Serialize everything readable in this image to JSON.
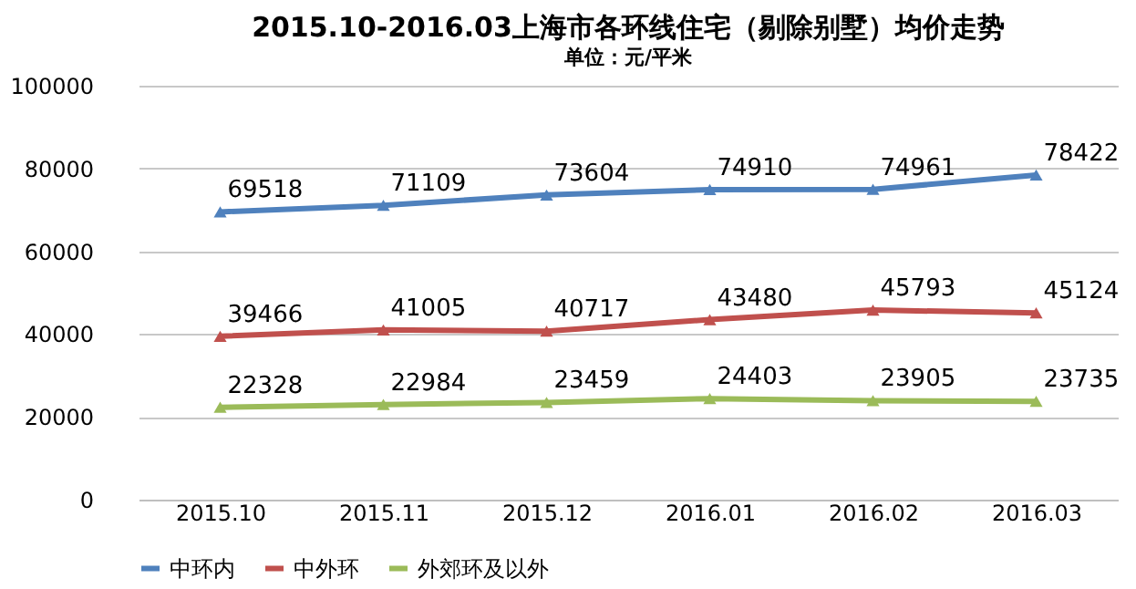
{
  "chart_data": {
    "type": "line",
    "title": "2015.10-2016.03上海市各环线住宅（剔除别墅）均价走势",
    "ylabel": "单位：元/平米",
    "categories": [
      "2015.10",
      "2015.11",
      "2015.12",
      "2016.01",
      "2016.02",
      "2016.03"
    ],
    "series": [
      {
        "name": "中环内",
        "color": "#4f81bd",
        "values": [
          69518,
          71109,
          73604,
          74910,
          74961,
          78422
        ]
      },
      {
        "name": "中外环",
        "color": "#c0504d",
        "values": [
          39466,
          41005,
          40717,
          43480,
          45793,
          45124
        ]
      },
      {
        "name": "外郊环及以外",
        "color": "#9bbb59",
        "values": [
          22328,
          22984,
          23459,
          24403,
          23905,
          23735
        ]
      }
    ],
    "ylim": [
      0,
      100000
    ],
    "yticks": [
      0,
      20000,
      40000,
      60000,
      80000,
      100000
    ],
    "grid": "y",
    "legend": "bottom",
    "marker": "triangle",
    "line_style": "solid",
    "data_labels": true
  }
}
